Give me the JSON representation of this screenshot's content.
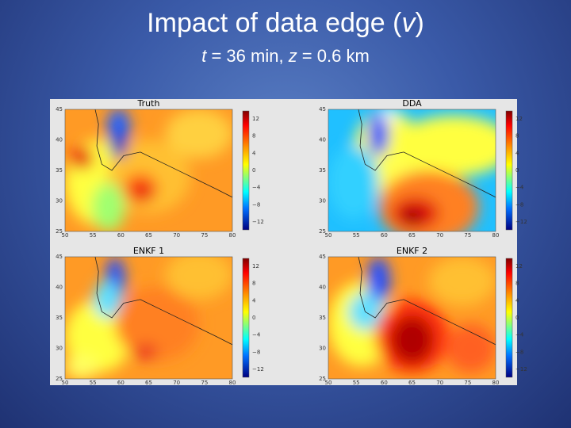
{
  "header": {
    "title": [
      "Impact of data edge (",
      "v",
      ")"
    ],
    "subtitle": [
      "t",
      " = 36 min, ",
      "z",
      " = 0.6 km"
    ]
  },
  "figure": {
    "x_ticks": [
      "50",
      "55",
      "60",
      "65",
      "70",
      "75",
      "80"
    ],
    "y_ticks": [
      "45",
      "40",
      "35",
      "30",
      "25"
    ],
    "colorbar_ticks": [
      "12",
      "8",
      "4",
      "0",
      "−4",
      "−8",
      "−12"
    ],
    "panels": [
      {
        "title": "Truth"
      },
      {
        "title": "DDA"
      },
      {
        "title": "ENKF 1"
      },
      {
        "title": "ENKF 2"
      }
    ]
  }
}
